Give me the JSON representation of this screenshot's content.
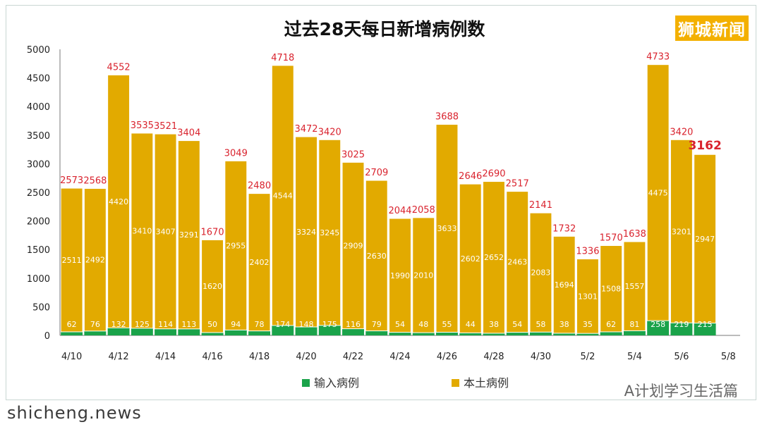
{
  "brand": "狮城新闻",
  "wechat_label": "A计划学习生活篇",
  "watermark": "shicheng.news",
  "colors": {
    "local": "#e2aa00",
    "imported": "#1aa34a",
    "total_label": "#d9232e",
    "inner_label": "#ffffff"
  },
  "chart_data": {
    "type": "bar",
    "title": "过去28天每日新增病例数",
    "stacked": true,
    "categories": [
      "4/10",
      "4/11",
      "4/12",
      "4/13",
      "4/14",
      "4/15",
      "4/16",
      "4/17",
      "4/18",
      "4/19",
      "4/20",
      "4/21",
      "4/22",
      "4/23",
      "4/24",
      "4/25",
      "4/26",
      "4/27",
      "4/28",
      "4/29",
      "4/30",
      "5/1",
      "5/2",
      "5/3",
      "5/4",
      "5/5",
      "5/6",
      "5/7"
    ],
    "x_tick_labels": [
      "4/10",
      "4/12",
      "4/14",
      "4/16",
      "4/18",
      "4/20",
      "4/22",
      "4/24",
      "4/26",
      "4/28",
      "4/30",
      "5/2",
      "5/4",
      "5/6",
      "5/8"
    ],
    "series": [
      {
        "name": "输入病例",
        "values": [
          62,
          76,
          132,
          125,
          114,
          113,
          50,
          94,
          78,
          174,
          148,
          175,
          116,
          79,
          54,
          48,
          55,
          44,
          38,
          54,
          58,
          38,
          35,
          62,
          81,
          258,
          219,
          215
        ]
      },
      {
        "name": "本土病例",
        "values": [
          2511,
          2492,
          4420,
          3410,
          3407,
          3291,
          1620,
          2955,
          2402,
          4544,
          3324,
          3245,
          2909,
          2630,
          1990,
          2010,
          3633,
          2602,
          2652,
          2463,
          2083,
          1694,
          1301,
          1508,
          1557,
          4475,
          3201,
          2947
        ]
      }
    ],
    "totals": [
      2573,
      2568,
      4552,
      3535,
      3521,
      3404,
      1670,
      3049,
      2480,
      4718,
      3472,
      3420,
      3025,
      2709,
      2044,
      2058,
      3688,
      2646,
      2690,
      2517,
      2141,
      1732,
      1336,
      1570,
      1638,
      4733,
      3420,
      3162
    ],
    "ylim": [
      0,
      5000
    ],
    "yticks": [
      0,
      500,
      1000,
      1500,
      2000,
      2500,
      3000,
      3500,
      4000,
      4500,
      5000
    ],
    "legend_position": "bottom",
    "grid": false
  }
}
